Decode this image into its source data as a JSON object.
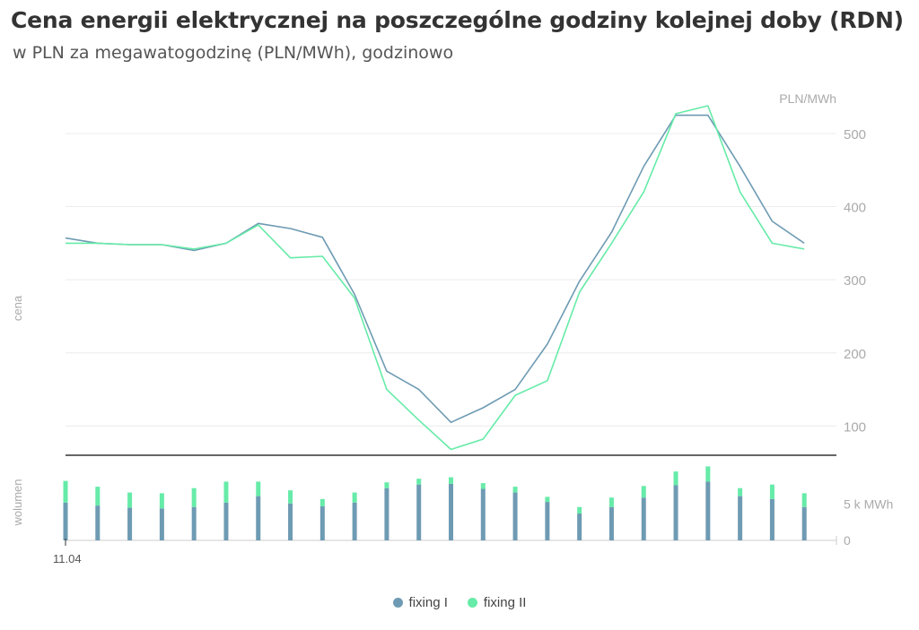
{
  "title": "Cena energii elektrycznej na poszczególne godziny kolejnej doby (RDN)",
  "subtitle": "w PLN za megawatogodzinę (PLN/MWh), godzinowo",
  "colors": {
    "fixing1": "#6e9bb3",
    "fixing2": "#66eba8",
    "grid": "#ececec",
    "axis": "#333333",
    "label": "#aaaaaa"
  },
  "chart_data": [
    {
      "type": "line",
      "ylabel": "cena",
      "unit": "PLN/MWh",
      "ylim": [
        60,
        560
      ],
      "yticks": [
        100,
        200,
        300,
        400,
        500
      ],
      "x": [
        0,
        1,
        2,
        3,
        4,
        5,
        6,
        7,
        8,
        9,
        10,
        11,
        12,
        13,
        14,
        15,
        16,
        17,
        18,
        19,
        20,
        21,
        22,
        23
      ],
      "xtick_label": "11.04",
      "grid": true,
      "series": [
        {
          "name": "fixing I",
          "color": "#6e9bb3",
          "values": [
            357,
            350,
            348,
            348,
            340,
            350,
            377,
            370,
            358,
            280,
            175,
            150,
            105,
            125,
            150,
            212,
            298,
            365,
            455,
            525,
            525,
            455,
            380,
            350
          ]
        },
        {
          "name": "fixing II",
          "color": "#66eba8",
          "values": [
            350,
            350,
            348,
            348,
            342,
            350,
            375,
            330,
            332,
            275,
            150,
            108,
            68,
            82,
            142,
            162,
            283,
            350,
            420,
            527,
            538,
            420,
            350,
            342
          ]
        }
      ]
    },
    {
      "type": "bar",
      "stacked": true,
      "ylabel": "wolumen",
      "unit": "k MWh",
      "ylim": [
        0,
        10.5
      ],
      "yticks": [
        0,
        5
      ],
      "ytick_labels": [
        "0",
        "5 k MWh"
      ],
      "series": [
        {
          "name": "fixing I",
          "color": "#6e9bb3",
          "values": [
            5.2,
            4.8,
            4.5,
            4.4,
            4.6,
            5.2,
            6.1,
            5.1,
            4.7,
            5.2,
            7.2,
            7.7,
            7.8,
            7.1,
            6.6,
            5.3,
            3.7,
            4.6,
            5.9,
            7.6,
            8.1,
            6.1,
            5.7,
            4.6
          ]
        },
        {
          "name": "fixing II",
          "color": "#66eba8",
          "values": [
            3.0,
            2.6,
            2.1,
            2.1,
            2.6,
            2.9,
            2.0,
            1.8,
            1.0,
            1.4,
            0.8,
            0.8,
            0.9,
            0.8,
            0.8,
            0.7,
            0.9,
            1.3,
            1.6,
            1.9,
            2.1,
            1.1,
            2.0,
            1.9
          ]
        }
      ]
    }
  ],
  "legend": [
    {
      "label": "fixing I",
      "color": "#6e9bb3"
    },
    {
      "label": "fixing II",
      "color": "#66eba8"
    }
  ]
}
